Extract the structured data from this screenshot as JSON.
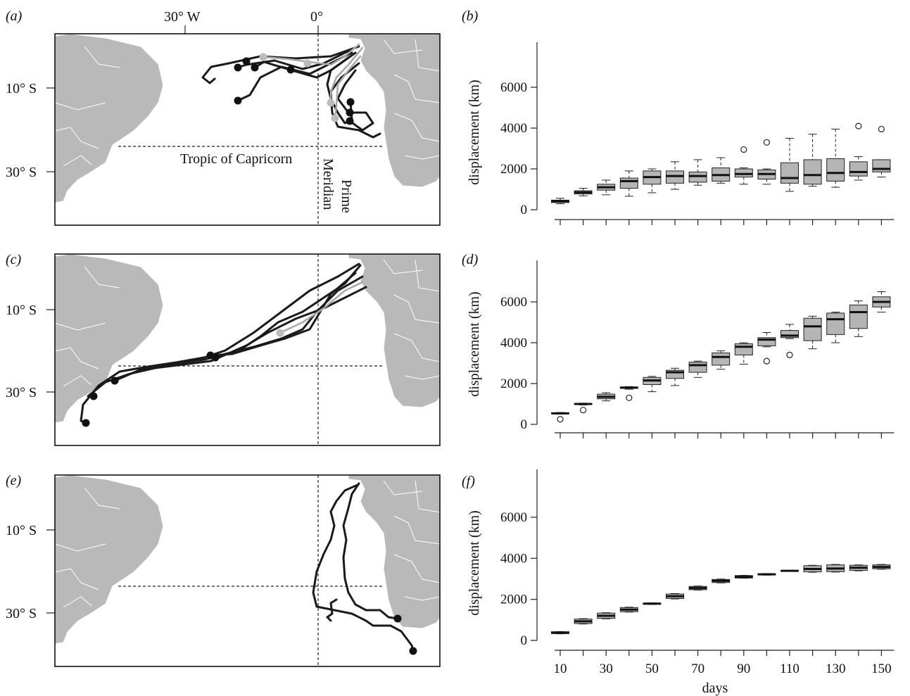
{
  "maps": {
    "labels": [
      "(a)",
      "(c)",
      "(e)"
    ],
    "lon_ticks": [
      "30° W",
      "0°"
    ],
    "lat_ticks": [
      "10° S",
      "30° S"
    ],
    "tropic_label": "Tropic of Capricorn",
    "meridian_label_1": "Prime",
    "meridian_label_2": "Meridian"
  },
  "chart_data": [
    {
      "type": "box",
      "panel": "(b)",
      "xlabel": "",
      "ylabel": "displacement (km)",
      "ylim": [
        0,
        8000
      ],
      "yticks": [
        0,
        2000,
        4000,
        6000
      ],
      "categories": [
        10,
        20,
        30,
        40,
        50,
        60,
        70,
        80,
        90,
        100,
        110,
        120,
        130,
        140,
        150
      ],
      "boxes": [
        {
          "x": 10,
          "low": 290,
          "q1": 350,
          "med": 420,
          "q3": 470,
          "high": 560,
          "out": []
        },
        {
          "x": 20,
          "low": 680,
          "q1": 770,
          "med": 850,
          "q3": 930,
          "high": 1050,
          "out": []
        },
        {
          "x": 30,
          "low": 730,
          "q1": 960,
          "med": 1100,
          "q3": 1250,
          "high": 1450,
          "out": []
        },
        {
          "x": 40,
          "low": 660,
          "q1": 1050,
          "med": 1400,
          "q3": 1550,
          "high": 1900,
          "out": []
        },
        {
          "x": 50,
          "low": 830,
          "q1": 1250,
          "med": 1600,
          "q3": 1900,
          "high": 2000,
          "out": []
        },
        {
          "x": 60,
          "low": 1000,
          "q1": 1300,
          "med": 1650,
          "q3": 1900,
          "high": 2350,
          "out": []
        },
        {
          "x": 70,
          "low": 1200,
          "q1": 1350,
          "med": 1650,
          "q3": 1850,
          "high": 2450,
          "out": []
        },
        {
          "x": 80,
          "low": 1300,
          "q1": 1400,
          "med": 1700,
          "q3": 2050,
          "high": 2550,
          "out": []
        },
        {
          "x": 90,
          "low": 1250,
          "q1": 1600,
          "med": 1750,
          "q3": 2000,
          "high": 2050,
          "out": [
            2950
          ]
        },
        {
          "x": 100,
          "low": 1250,
          "q1": 1500,
          "med": 1750,
          "q3": 1950,
          "high": 2000,
          "out": [
            3300
          ]
        },
        {
          "x": 110,
          "low": 900,
          "q1": 1300,
          "med": 1550,
          "q3": 2300,
          "high": 3500,
          "out": []
        },
        {
          "x": 120,
          "low": 1150,
          "q1": 1250,
          "med": 1700,
          "q3": 2450,
          "high": 3700,
          "out": []
        },
        {
          "x": 130,
          "low": 1100,
          "q1": 1400,
          "med": 1800,
          "q3": 2500,
          "high": 3950,
          "out": []
        },
        {
          "x": 140,
          "low": 1450,
          "q1": 1650,
          "med": 1850,
          "q3": 2350,
          "high": 2600,
          "out": [
            4100
          ]
        },
        {
          "x": 150,
          "low": 1600,
          "q1": 1850,
          "med": 2000,
          "q3": 2450,
          "high": 2450,
          "out": [
            3950
          ]
        }
      ]
    },
    {
      "type": "box",
      "panel": "(d)",
      "xlabel": "",
      "ylabel": "displacement (km)",
      "ylim": [
        0,
        8000
      ],
      "yticks": [
        0,
        2000,
        4000,
        6000
      ],
      "categories": [
        10,
        20,
        30,
        40,
        50,
        60,
        70,
        80,
        90,
        100,
        110,
        120,
        130,
        140,
        150
      ],
      "boxes": [
        {
          "x": 10,
          "low": 500,
          "q1": 520,
          "med": 540,
          "q3": 560,
          "high": 580,
          "out": [
            250
          ]
        },
        {
          "x": 20,
          "low": 950,
          "q1": 970,
          "med": 1000,
          "q3": 1020,
          "high": 1040,
          "out": [
            700
          ]
        },
        {
          "x": 30,
          "low": 1150,
          "q1": 1250,
          "med": 1350,
          "q3": 1480,
          "high": 1550,
          "out": []
        },
        {
          "x": 40,
          "low": 1720,
          "q1": 1760,
          "med": 1800,
          "q3": 1830,
          "high": 1850,
          "out": [
            1300
          ]
        },
        {
          "x": 50,
          "low": 1600,
          "q1": 1950,
          "med": 2150,
          "q3": 2300,
          "high": 2350,
          "out": []
        },
        {
          "x": 60,
          "low": 1900,
          "q1": 2250,
          "med": 2550,
          "q3": 2650,
          "high": 2750,
          "out": []
        },
        {
          "x": 70,
          "low": 2300,
          "q1": 2550,
          "med": 2900,
          "q3": 3050,
          "high": 3100,
          "out": []
        },
        {
          "x": 80,
          "low": 2700,
          "q1": 2900,
          "med": 3300,
          "q3": 3500,
          "high": 3600,
          "out": []
        },
        {
          "x": 90,
          "low": 2950,
          "q1": 3400,
          "med": 3800,
          "q3": 3950,
          "high": 4000,
          "out": []
        },
        {
          "x": 100,
          "low": 3800,
          "q1": 3850,
          "med": 4150,
          "q3": 4250,
          "high": 4500,
          "out": [
            3100
          ]
        },
        {
          "x": 110,
          "low": 4200,
          "q1": 4250,
          "med": 4350,
          "q3": 4600,
          "high": 4900,
          "out": [
            3400
          ]
        },
        {
          "x": 120,
          "low": 3700,
          "q1": 4100,
          "med": 4800,
          "q3": 5200,
          "high": 5300,
          "out": []
        },
        {
          "x": 130,
          "low": 4000,
          "q1": 4400,
          "med": 5150,
          "q3": 5450,
          "high": 5500,
          "out": []
        },
        {
          "x": 140,
          "low": 4300,
          "q1": 4700,
          "med": 5500,
          "q3": 5850,
          "high": 6050,
          "out": []
        },
        {
          "x": 150,
          "low": 5500,
          "q1": 5750,
          "med": 6000,
          "q3": 6250,
          "high": 6500,
          "out": []
        }
      ]
    },
    {
      "type": "box",
      "panel": "(f)",
      "xlabel": "days",
      "ylabel": "displacement (km)",
      "ylim": [
        0,
        8000
      ],
      "yticks": [
        0,
        2000,
        4000,
        6000
      ],
      "categories": [
        10,
        20,
        30,
        40,
        50,
        60,
        70,
        80,
        90,
        100,
        110,
        120,
        130,
        140,
        150
      ],
      "xticklabels": [
        "10",
        "30",
        "50",
        "70",
        "90",
        "110",
        "130",
        "150"
      ],
      "boxes": [
        {
          "x": 10,
          "low": 320,
          "q1": 330,
          "med": 380,
          "q3": 420,
          "high": 430,
          "out": []
        },
        {
          "x": 20,
          "low": 800,
          "q1": 820,
          "med": 930,
          "q3": 1040,
          "high": 1060,
          "out": []
        },
        {
          "x": 30,
          "low": 1050,
          "q1": 1070,
          "med": 1200,
          "q3": 1330,
          "high": 1350,
          "out": []
        },
        {
          "x": 40,
          "low": 1380,
          "q1": 1400,
          "med": 1500,
          "q3": 1600,
          "high": 1620,
          "out": []
        },
        {
          "x": 50,
          "low": 1750,
          "q1": 1760,
          "med": 1790,
          "q3": 1820,
          "high": 1830,
          "out": []
        },
        {
          "x": 60,
          "low": 2020,
          "q1": 2040,
          "med": 2150,
          "q3": 2260,
          "high": 2280,
          "out": []
        },
        {
          "x": 70,
          "low": 2450,
          "q1": 2470,
          "med": 2550,
          "q3": 2630,
          "high": 2650,
          "out": []
        },
        {
          "x": 80,
          "low": 2800,
          "q1": 2820,
          "med": 2900,
          "q3": 2970,
          "high": 2990,
          "out": []
        },
        {
          "x": 90,
          "low": 3030,
          "q1": 3040,
          "med": 3100,
          "q3": 3160,
          "high": 3170,
          "out": []
        },
        {
          "x": 100,
          "low": 3180,
          "q1": 3190,
          "med": 3220,
          "q3": 3250,
          "high": 3260,
          "out": []
        },
        {
          "x": 110,
          "low": 3360,
          "q1": 3370,
          "med": 3390,
          "q3": 3410,
          "high": 3420,
          "out": []
        },
        {
          "x": 120,
          "low": 3320,
          "q1": 3340,
          "med": 3480,
          "q3": 3640,
          "high": 3660,
          "out": []
        },
        {
          "x": 130,
          "low": 3330,
          "q1": 3350,
          "med": 3500,
          "q3": 3680,
          "high": 3700,
          "out": []
        },
        {
          "x": 140,
          "low": 3390,
          "q1": 3410,
          "med": 3540,
          "q3": 3660,
          "high": 3680,
          "out": []
        },
        {
          "x": 150,
          "low": 3470,
          "q1": 3490,
          "med": 3580,
          "q3": 3680,
          "high": 3700,
          "out": []
        }
      ]
    }
  ]
}
